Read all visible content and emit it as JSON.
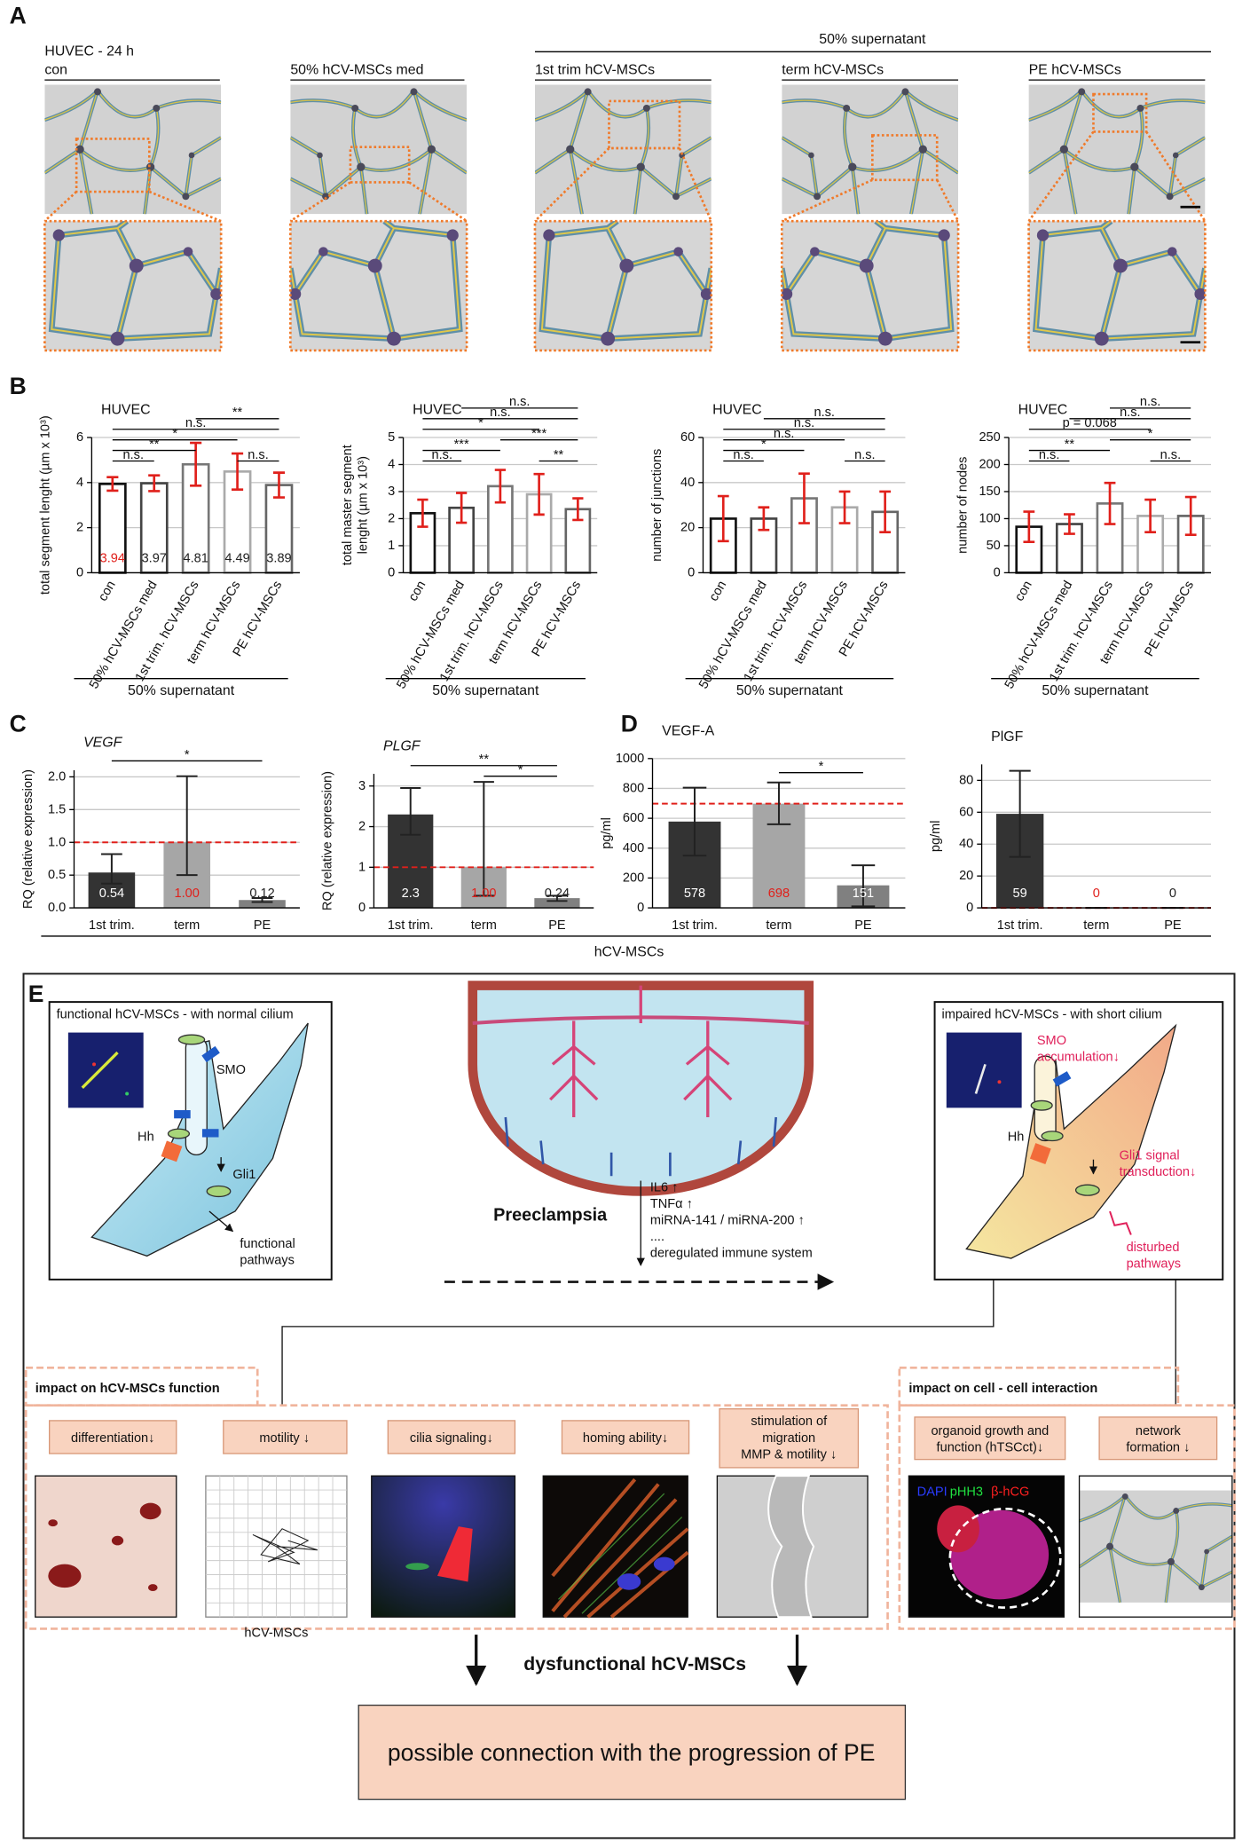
{
  "panel_labels": [
    "A",
    "B",
    "C",
    "D",
    "E"
  ],
  "panel_a": {
    "title": "HUVEC - 24 h",
    "group_label": "50% supernatant",
    "conditions": [
      "con",
      "50% hCV-MSCs  med",
      "1st trim hCV-MSCs",
      "term hCV-MSCs",
      "PE hCV-MSCs"
    ]
  },
  "panel_cd_label": "hCV-MSCs",
  "chart_data": [
    {
      "type": "bar",
      "title": "HUVEC",
      "y_label": "total segment lenght (µm x 10³)",
      "categories": [
        "con",
        "50% hCV-MSCs  med",
        "1st trim. hCV-MSCs",
        "term hCV-MSCs",
        "PE hCV-MSCs"
      ],
      "values": [
        3.94,
        3.97,
        4.81,
        4.49,
        3.89
      ],
      "errors": [
        0.3,
        0.35,
        0.95,
        0.8,
        0.55
      ],
      "show_values": true,
      "value_label_colors": [
        "#e0201b",
        "#222222",
        "#222222",
        "#222222",
        "#222222"
      ],
      "bar_fill": "#ffffff",
      "edge_colors": [
        "#111111",
        "#444444",
        "#777777",
        "#aaaaaa",
        "#666666"
      ],
      "error_color": "#e0201b",
      "ylim": [
        0,
        6
      ],
      "yticks": [
        0,
        2,
        4,
        6
      ],
      "grid": true,
      "rotated_labels": true,
      "group_label": "50% supernatant",
      "significance": [
        {
          "from": 0,
          "to": 1,
          "label": "n.s."
        },
        {
          "from": 0,
          "to": 2,
          "label": "**"
        },
        {
          "from": 3,
          "to": 4,
          "label": "n.s."
        },
        {
          "from": 0,
          "to": 3,
          "label": "*"
        },
        {
          "from": 0,
          "to": 4,
          "label": "n.s."
        },
        {
          "from": 2,
          "to": 4,
          "label": "**"
        }
      ]
    },
    {
      "type": "bar",
      "title": "HUVEC",
      "y_label": [
        "total master segment",
        "lenght (µm x 10³)"
      ],
      "categories": [
        "con",
        "50% hCV-MSCs  med",
        "1st trim. hCV-MSCs",
        "term hCV-MSCs",
        "PE hCV-MSCs"
      ],
      "values": [
        2.2,
        2.4,
        3.2,
        2.9,
        2.35
      ],
      "errors": [
        0.5,
        0.55,
        0.6,
        0.75,
        0.4
      ],
      "bar_fill": "#ffffff",
      "edge_colors": [
        "#111111",
        "#444444",
        "#777777",
        "#aaaaaa",
        "#666666"
      ],
      "error_color": "#e0201b",
      "ylim": [
        0,
        5
      ],
      "yticks": [
        0,
        1,
        2,
        3,
        4,
        5
      ],
      "grid": true,
      "rotated_labels": true,
      "group_label": "50% supernatant",
      "significance": [
        {
          "from": 0,
          "to": 1,
          "label": "n.s."
        },
        {
          "from": 3,
          "to": 4,
          "label": "**"
        },
        {
          "from": 0,
          "to": 2,
          "label": "***"
        },
        {
          "from": 2,
          "to": 4,
          "label": "***"
        },
        {
          "from": 0,
          "to": 3,
          "label": "*"
        },
        {
          "from": 0,
          "to": 4,
          "label": "n.s."
        },
        {
          "from": 1,
          "to": 4,
          "label": "n.s."
        }
      ]
    },
    {
      "type": "bar",
      "title": "HUVEC",
      "y_label": "number of junctions",
      "categories": [
        "con",
        "50% hCV-MSCs  med",
        "1st trim. hCV-MSCs",
        "term hCV-MSCs",
        "PE hCV-MSCs"
      ],
      "values": [
        24,
        24,
        33,
        29,
        27
      ],
      "errors": [
        10,
        5,
        11,
        7,
        9
      ],
      "bar_fill": "#ffffff",
      "edge_colors": [
        "#111111",
        "#444444",
        "#777777",
        "#aaaaaa",
        "#666666"
      ],
      "error_color": "#e0201b",
      "ylim": [
        0,
        60
      ],
      "yticks": [
        0,
        20,
        40,
        60
      ],
      "grid": true,
      "rotated_labels": true,
      "group_label": "50% supernatant",
      "significance": [
        {
          "from": 0,
          "to": 1,
          "label": "n.s."
        },
        {
          "from": 3,
          "to": 4,
          "label": "n.s."
        },
        {
          "from": 0,
          "to": 2,
          "label": "*"
        },
        {
          "from": 0,
          "to": 3,
          "label": "n.s."
        },
        {
          "from": 0,
          "to": 4,
          "label": "n.s."
        },
        {
          "from": 1,
          "to": 4,
          "label": "n.s."
        }
      ]
    },
    {
      "type": "bar",
      "title": "HUVEC",
      "y_label": "number of nodes",
      "categories": [
        "con",
        "50% hCV-MSCs  med",
        "1st trim. hCV-MSCs",
        "term hCV-MSCs",
        "PE hCV-MSCs"
      ],
      "values": [
        85,
        90,
        128,
        105,
        105
      ],
      "errors": [
        28,
        18,
        38,
        30,
        35
      ],
      "bar_fill": "#ffffff",
      "edge_colors": [
        "#111111",
        "#444444",
        "#777777",
        "#aaaaaa",
        "#666666"
      ],
      "error_color": "#e0201b",
      "ylim": [
        0,
        250
      ],
      "yticks": [
        0,
        50,
        100,
        150,
        200,
        250
      ],
      "grid": true,
      "rotated_labels": true,
      "group_label": "50% supernatant",
      "significance": [
        {
          "from": 0,
          "to": 1,
          "label": "n.s."
        },
        {
          "from": 3,
          "to": 4,
          "label": "n.s."
        },
        {
          "from": 0,
          "to": 2,
          "label": "**"
        },
        {
          "from": 2,
          "to": 4,
          "label": "*"
        },
        {
          "from": 0,
          "to": 3,
          "label": "p = 0.068"
        },
        {
          "from": 1,
          "to": 4,
          "label": "n.s."
        },
        {
          "from": 2,
          "to": 4,
          "label": "n.s."
        }
      ]
    },
    {
      "type": "bar",
      "title": "VEGF",
      "title_italic": true,
      "y_label": "RQ (relative expression)",
      "categories": [
        "1st trim.",
        "term",
        "PE"
      ],
      "values": [
        0.54,
        1.0,
        0.12
      ],
      "value_labels": [
        "0.54",
        "1.00",
        "0.12"
      ],
      "value_label_colors": [
        "#ffffff",
        "#e0201b",
        "#222222"
      ],
      "error_low": [
        0.37,
        0.5,
        0.09
      ],
      "error_high": [
        0.82,
        2.01,
        0.15
      ],
      "colors": [
        "#333333",
        "#a6a6a6",
        "#808080"
      ],
      "error_color": "#222222",
      "reference_line": 1,
      "reference_color": "#e0201b",
      "ylim": [
        0,
        2.1
      ],
      "yticks": [
        {
          "value": 0,
          "label": "0.0"
        },
        0.5,
        {
          "value": 1,
          "label": "1.0"
        },
        1.5,
        {
          "value": 2,
          "label": "2.0"
        }
      ],
      "grid": true,
      "significance": [
        {
          "from": 0,
          "to": 2,
          "label": "*"
        }
      ]
    },
    {
      "type": "bar",
      "title": "PLGF",
      "title_italic": true,
      "y_label": "RQ (relative expression)",
      "categories": [
        "1st trim.",
        "term",
        "PE"
      ],
      "values": [
        2.3,
        1.0,
        0.24
      ],
      "value_labels": [
        "2.3",
        "1.00",
        "0.24"
      ],
      "value_label_colors": [
        "#ffffff",
        "#e0201b",
        "#222222"
      ],
      "error_low": [
        1.8,
        0.3,
        0.17
      ],
      "error_high": [
        2.95,
        3.1,
        0.3
      ],
      "colors": [
        "#333333",
        "#a6a6a6",
        "#808080"
      ],
      "error_color": "#222222",
      "reference_line": 1,
      "reference_color": "#e0201b",
      "ylim": [
        0,
        3.3
      ],
      "yticks": [
        0,
        1,
        2,
        3
      ],
      "grid": true,
      "significance": [
        {
          "from": 1,
          "to": 2,
          "label": "*"
        },
        {
          "from": 0,
          "to": 2,
          "label": "**"
        }
      ]
    },
    {
      "type": "bar",
      "title": "VEGF-A",
      "y_label": "pg/ml",
      "categories": [
        "1st trim.",
        "term",
        "PE"
      ],
      "values": [
        578,
        698,
        151
      ],
      "show_values": true,
      "value_label_colors": [
        "#ffffff",
        "#e0201b",
        "#ffffff"
      ],
      "error_low": [
        350,
        560,
        10
      ],
      "error_high": [
        805,
        840,
        285
      ],
      "colors": [
        "#333333",
        "#a6a6a6",
        "#808080"
      ],
      "error_color": "#222222",
      "reference_line": 698,
      "reference_color": "#e0201b",
      "ylim": [
        0,
        1000
      ],
      "yticks": [
        0,
        200,
        400,
        600,
        800,
        1000
      ],
      "grid": true,
      "significance": [
        {
          "from": 1,
          "to": 2,
          "label": "*"
        }
      ]
    },
    {
      "type": "bar",
      "title": "PlGF",
      "y_label": "pg/ml",
      "categories": [
        "1st trim.",
        "term",
        "PE"
      ],
      "values": [
        59,
        0,
        0
      ],
      "show_values": true,
      "value_label_colors": [
        "#ffffff",
        "#e0201b",
        "#222222"
      ],
      "error_low": [
        32,
        0,
        0
      ],
      "error_high": [
        86,
        0,
        0
      ],
      "colors": [
        "#333333",
        "#a6a6a6",
        "#808080"
      ],
      "error_color": "#222222",
      "reference_line": 0,
      "reference_color": "#e0201b",
      "ylim": [
        0,
        90
      ],
      "yticks": [
        0,
        20,
        40,
        60,
        80
      ],
      "grid": true,
      "significance": []
    }
  ],
  "panel_e": {
    "left_cell": {
      "title": "functional hCV-MSCs - with normal cilium",
      "labels": [
        "SMO",
        "Hh",
        "Gli1"
      ],
      "outcome": [
        "functional",
        "pathways"
      ]
    },
    "right_cell": {
      "title": "impaired hCV-MSCs - with short cilium",
      "smo": [
        "SMO",
        "accumulation↓"
      ],
      "hh": "Hh",
      "gli": [
        "Gli1 signal",
        "transduction↓"
      ],
      "outcome": [
        "disturbed",
        "pathways"
      ]
    },
    "center": {
      "title": "Preeclampsia",
      "factors": [
        "IL6 ↑",
        "TNFα ↑",
        "miRNA-141 / miRNA-200 ↑",
        "....",
        "deregulated immune system"
      ]
    },
    "function_section": {
      "title": "impact on hCV-MSCs function",
      "items": [
        [
          "differentiation↓"
        ],
        [
          "motility ↓"
        ],
        [
          "cilia signaling↓"
        ],
        [
          "homing ability↓"
        ],
        [
          "stimulation of",
          "migration",
          "MMP & motility ↓"
        ]
      ],
      "plot_label": "hCV-MSCs"
    },
    "interaction_section": {
      "title": "impact on cell - cell interaction",
      "items": [
        [
          "organoid growth and",
          "function (hTSCct)↓"
        ],
        [
          "network",
          "formation ↓"
        ]
      ],
      "stain_labels": [
        "DAPI",
        "pHH3",
        "β-hCG"
      ]
    },
    "conclusion": {
      "title": "dysfunctional hCV-MSCs",
      "statement": "possible connection with the progression of PE"
    }
  }
}
